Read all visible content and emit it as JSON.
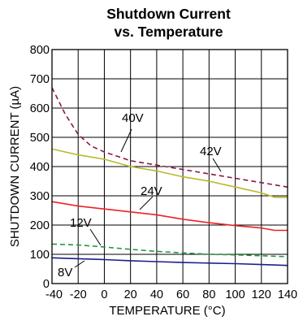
{
  "chart_data": {
    "type": "line",
    "title_lines": [
      "Shutdown Current",
      "vs. Temperature"
    ],
    "xlabel": "TEMPERATURE (°C)",
    "ylabel": "SHUTDOWN CURRENT (µA)",
    "xlim": [
      -40,
      140
    ],
    "ylim": [
      0,
      800
    ],
    "xticks": [
      -40,
      -20,
      0,
      20,
      40,
      60,
      80,
      100,
      120,
      140
    ],
    "yticks": [
      0,
      100,
      200,
      300,
      400,
      500,
      600,
      700,
      800
    ],
    "xtick_labels": [
      "-40",
      "-20",
      "0",
      "20",
      "40",
      "60",
      "80",
      "100",
      "120",
      "140"
    ],
    "ytick_labels": [
      "0",
      "100",
      "200",
      "300",
      "400",
      "500",
      "600",
      "700",
      "800"
    ],
    "grid": true,
    "series": [
      {
        "name": "42V",
        "color": "#8a1a4a",
        "style": "dashed",
        "x": [
          -40,
          -30,
          -20,
          -10,
          0,
          10,
          20,
          40,
          60,
          80,
          100,
          120,
          140
        ],
        "y": [
          670,
          580,
          510,
          470,
          450,
          435,
          420,
          405,
          390,
          375,
          360,
          345,
          330
        ]
      },
      {
        "name": "40V",
        "color": "#b9b92a",
        "style": "solid",
        "x": [
          -40,
          -20,
          0,
          20,
          40,
          60,
          80,
          100,
          120,
          130,
          140
        ],
        "y": [
          460,
          440,
          425,
          400,
          385,
          365,
          350,
          330,
          310,
          295,
          295
        ]
      },
      {
        "name": "24V",
        "color": "#ee2222",
        "style": "solid",
        "x": [
          -40,
          -20,
          0,
          20,
          40,
          60,
          80,
          100,
          120,
          130,
          140
        ],
        "y": [
          280,
          265,
          255,
          245,
          235,
          220,
          208,
          198,
          190,
          182,
          182
        ]
      },
      {
        "name": "12V",
        "color": "#1e9a3c",
        "style": "dashed",
        "x": [
          -40,
          -20,
          0,
          20,
          40,
          60,
          80,
          100,
          120,
          140
        ],
        "y": [
          135,
          132,
          125,
          117,
          110,
          105,
          100,
          98,
          95,
          92
        ]
      },
      {
        "name": "8V",
        "color": "#1e1e8a",
        "style": "solid",
        "x": [
          -40,
          -20,
          0,
          20,
          40,
          60,
          80,
          100,
          120,
          140
        ],
        "y": [
          88,
          85,
          82,
          78,
          75,
          72,
          70,
          68,
          65,
          62
        ]
      }
    ],
    "annotations": [
      {
        "label": "40V",
        "series": "40V"
      },
      {
        "label": "42V",
        "series": "42V"
      },
      {
        "label": "24V",
        "series": "24V"
      },
      {
        "label": "12V",
        "series": "12V"
      },
      {
        "label": "8V",
        "series": "8V"
      }
    ]
  }
}
